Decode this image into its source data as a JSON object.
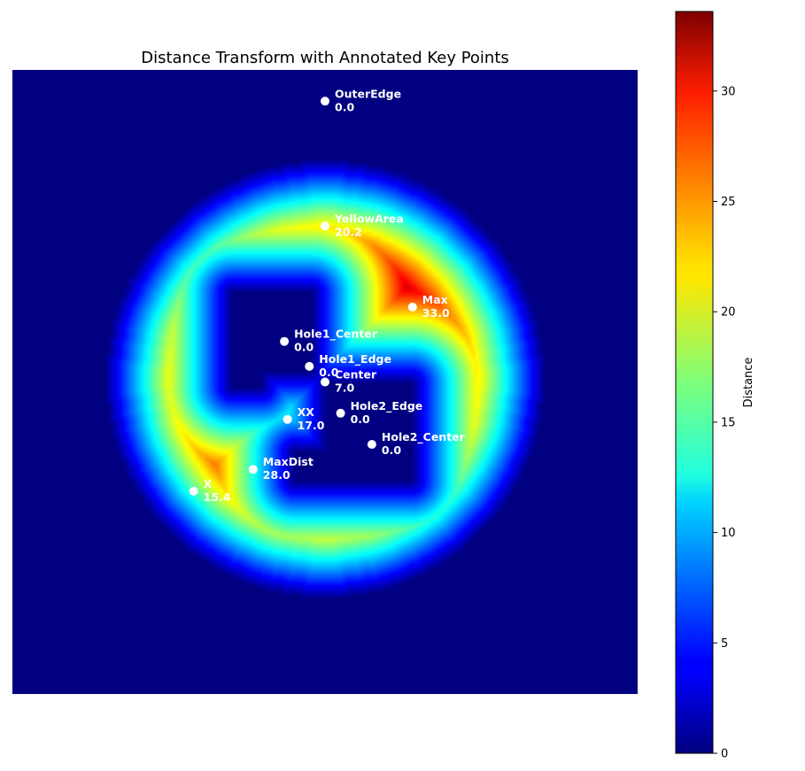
{
  "chart_data": {
    "type": "heatmap",
    "title": "Distance Transform with Annotated Key Points",
    "colormap": "jet",
    "colorbar": {
      "label": "Distance",
      "range": [
        0,
        33.6
      ],
      "ticks": [
        "0",
        "5",
        "10",
        "15",
        "20",
        "25",
        "30"
      ]
    },
    "grid": false,
    "axes_visible": false,
    "key_points": [
      {
        "name": "OuterEdge",
        "x": 100,
        "y": 10,
        "value": "0.0"
      },
      {
        "name": "YellowArea",
        "x": 100,
        "y": 50,
        "value": "20.2"
      },
      {
        "name": "Max",
        "x": 128,
        "y": 76,
        "value": "33.0"
      },
      {
        "name": "Hole1_Center",
        "x": 87,
        "y": 87,
        "value": "0.0"
      },
      {
        "name": "Hole1_Edge",
        "x": 95,
        "y": 95,
        "value": "0.0"
      },
      {
        "name": "Center",
        "x": 100,
        "y": 100,
        "value": "7.0"
      },
      {
        "name": "Hole2_Edge",
        "x": 105,
        "y": 110,
        "value": "0.0"
      },
      {
        "name": "XX",
        "x": 88,
        "y": 112,
        "value": "17.0"
      },
      {
        "name": "Hole2_Center",
        "x": 115,
        "y": 120,
        "value": "0.0"
      },
      {
        "name": "MaxDist",
        "x": 77,
        "y": 128,
        "value": "28.0"
      },
      {
        "name": "X",
        "x": 58,
        "y": 135,
        "value": "15.4"
      }
    ]
  }
}
